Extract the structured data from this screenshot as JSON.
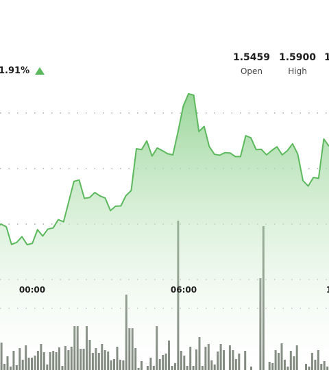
{
  "header": {
    "change_pct": "1.91%",
    "change_direction_icon": "triangle-up-icon",
    "stats": [
      {
        "value": "1.5459",
        "label": "Open"
      },
      {
        "value": "1.5900",
        "label": "High"
      },
      {
        "value": "1",
        "label": ""
      }
    ]
  },
  "colors": {
    "line": "#5cb85c",
    "area_top": "#8fd18f",
    "volume_bar": "#616b5f",
    "grid": "#9a9a9a"
  },
  "chart_data": {
    "type": "line",
    "title": "",
    "xlabel": "",
    "ylabel": "",
    "x_ticks": [
      "00:00",
      "06:00",
      "1"
    ],
    "grid": true,
    "ylim": [
      1.5,
      1.6
    ],
    "price_series": [
      1.5389,
      1.5403,
      1.5393,
      1.533,
      1.5337,
      1.5358,
      1.5329,
      1.5334,
      1.5383,
      1.536,
      1.5385,
      1.5389,
      1.5419,
      1.5411,
      1.5483,
      1.5556,
      1.5561,
      1.5495,
      1.5498,
      1.5516,
      1.5504,
      1.5496,
      1.5451,
      1.5467,
      1.5468,
      1.5505,
      1.5523,
      1.5673,
      1.567,
      1.5701,
      1.5647,
      1.5676,
      1.5666,
      1.5655,
      1.5651,
      1.5735,
      1.5826,
      1.587,
      1.5865,
      1.5735,
      1.5753,
      1.5681,
      1.5653,
      1.565,
      1.5659,
      1.5658,
      1.5645,
      1.5645,
      1.572,
      1.5712,
      1.567,
      1.5671,
      1.5651,
      1.5667,
      1.568,
      1.5651,
      1.5666,
      1.5691,
      1.5654,
      1.5559,
      1.5539,
      1.557,
      1.5567,
      1.5708,
      1.5682
    ],
    "volume_series": [
      40,
      9,
      20,
      5,
      28,
      7,
      32,
      15,
      36,
      18,
      18,
      21,
      28,
      38,
      26,
      8,
      26,
      28,
      26,
      33,
      6,
      35,
      29,
      34,
      64,
      64,
      31,
      31,
      64,
      44,
      25,
      32,
      25,
      38,
      29,
      27,
      14,
      16,
      34,
      15,
      14,
      110,
      61,
      61,
      32,
      3,
      13,
      0,
      6,
      18,
      6,
      64,
      16,
      22,
      24,
      43,
      6,
      10,
      218,
      28,
      21,
      6,
      34,
      6,
      30,
      48,
      6,
      34,
      38,
      14,
      8,
      27,
      38,
      29,
      0,
      36,
      29,
      16,
      24,
      0,
      28,
      0,
      5,
      0,
      0,
      134,
      210,
      0,
      12,
      10,
      29,
      25,
      39,
      15,
      5,
      28,
      20,
      36,
      0,
      0,
      9,
      5,
      25,
      15,
      29,
      9,
      13,
      5
    ]
  }
}
